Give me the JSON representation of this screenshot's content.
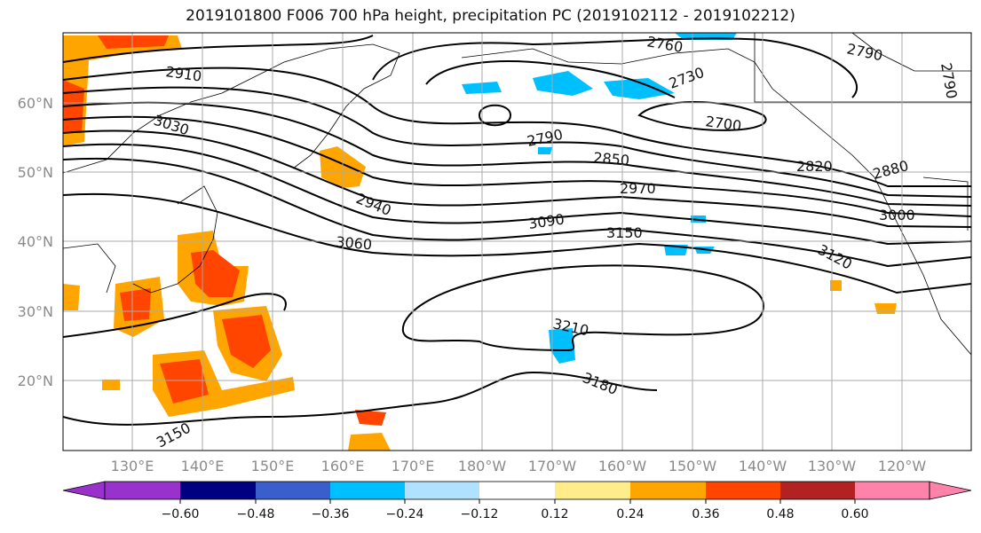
{
  "title": "2019101800 F006 700 hPa height, precipitation PC (2019102112 - 2019102212)",
  "lat_labels": [
    "60°N",
    "50°N",
    "40°N",
    "30°N",
    "20°N"
  ],
  "lon_labels": [
    "130°E",
    "140°E",
    "150°E",
    "160°E",
    "170°E",
    "180°W",
    "170°W",
    "160°W",
    "150°W",
    "140°W",
    "130°W",
    "120°W"
  ],
  "contour_labels": [
    "2910",
    "3030",
    "2940",
    "3060",
    "3090",
    "3150",
    "3210",
    "3180",
    "3150",
    "2760",
    "2790",
    "2730",
    "2700",
    "2790",
    "2850",
    "2970",
    "2820",
    "2880",
    "3000",
    "3120",
    "2790"
  ],
  "colorbar": {
    "ticks": [
      "−0.60",
      "−0.48",
      "−0.36",
      "−0.24",
      "−0.12",
      "0.12",
      "0.24",
      "0.36",
      "0.48",
      "0.60"
    ],
    "colors": [
      "#9932cc",
      "#000080",
      "#3a5fcd",
      "#00bfff",
      "#b0e2ff",
      "#ffffff",
      "#ffec8b",
      "#ffa500",
      "#ff4500",
      "#b22222",
      "#ff82ab"
    ]
  },
  "colors": {
    "positive_light": "#ffec8b",
    "positive_mid": "#ffa500",
    "positive_high": "#ff4500",
    "negative_mid": "#00bfff",
    "negative_light": "#b0e2ff",
    "grid": "#aaaaaa"
  }
}
